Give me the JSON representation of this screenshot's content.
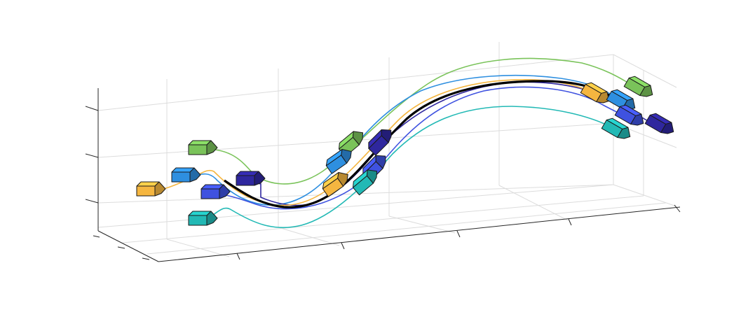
{
  "figure": {
    "kind": "3d-trajectory-plot",
    "grid": "on",
    "tick_labels_shown": false,
    "reference_path_color": "#000000",
    "agents": [
      {
        "id": "yellow",
        "color": "#f5b640"
      },
      {
        "id": "light-blue",
        "color": "#2e8fe0"
      },
      {
        "id": "green",
        "color": "#7ac35a"
      },
      {
        "id": "blue",
        "color": "#3f52e0"
      },
      {
        "id": "navy",
        "color": "#2f279e"
      },
      {
        "id": "teal",
        "color": "#22b9b5"
      }
    ]
  }
}
